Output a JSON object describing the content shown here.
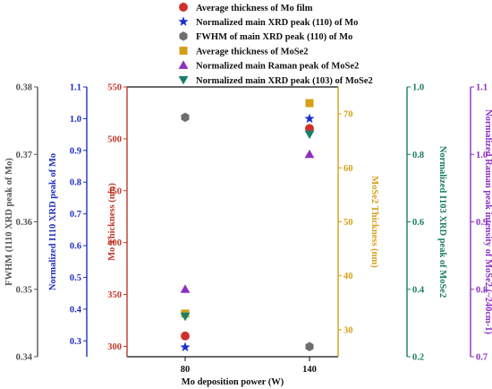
{
  "chart_data": {
    "type": "scatter",
    "x_categories": [
      "80",
      "140"
    ],
    "xlabel": "Mo deposition power (W)",
    "axes": [
      {
        "id": "mo_thickness",
        "label": "Mo Thickness (nm)",
        "color": "#c0392b",
        "range": [
          290,
          550
        ],
        "ticks": [
          "300",
          "350",
          "400",
          "450",
          "500",
          "550"
        ]
      },
      {
        "id": "fwhm",
        "label": "FWHM (I110 XRD peak of Mo)",
        "color": "#555555",
        "range": [
          0.34,
          0.38
        ],
        "ticks": [
          "0.34",
          "0.35",
          "0.36",
          "0.37",
          "0.38"
        ]
      },
      {
        "id": "norm_xrd_mo",
        "label": "Normalized I110 XRD peak of Mo",
        "color": "#1f2fbf",
        "range": [
          0.25,
          1.1
        ],
        "ticks": [
          "0.3",
          "0.4",
          "0.5",
          "0.6",
          "0.7",
          "0.8",
          "0.9",
          "1.0",
          "1.1"
        ]
      },
      {
        "id": "mose2_thickness",
        "label": "MoSe2 Thickness (nm)",
        "color": "#d4a017",
        "range": [
          25,
          75
        ],
        "ticks": [
          "30",
          "40",
          "50",
          "60",
          "70"
        ]
      },
      {
        "id": "norm_xrd_mose2",
        "label": "Normalized I103 XRD peak of MoSe2",
        "color": "#1a7f5a",
        "range": [
          0.2,
          1.0
        ],
        "ticks": [
          "0.2",
          "0.4",
          "0.6",
          "0.8",
          "1.0"
        ]
      },
      {
        "id": "norm_raman",
        "label": "Normalized Raman peak intensity of MoSe2 (~240cm-1)",
        "color": "#8e2fc0",
        "range": [
          0.7,
          1.1
        ],
        "ticks": [
          "0.7",
          "0.8",
          "0.9",
          "1.0",
          "1.1"
        ]
      }
    ],
    "series": [
      {
        "name": "Average thickness of Mo film",
        "axis": "mo_thickness",
        "marker": "circle",
        "color": "#d0302a",
        "values": [
          310,
          510
        ]
      },
      {
        "name": "Normalized main XRD peak (110) of Mo",
        "axis": "norm_xrd_mo",
        "marker": "star",
        "color": "#1a2fd0",
        "values": [
          0.28,
          1.0
        ]
      },
      {
        "name": "FWHM of main XRD peak (110) of Mo",
        "axis": "fwhm",
        "marker": "hexagon",
        "color": "#6e6e6e",
        "values": [
          0.3755,
          0.3415
        ]
      },
      {
        "name": "Average thickness of MoSe2",
        "axis": "mose2_thickness",
        "marker": "square",
        "color": "#d4a017",
        "values": [
          33,
          72
        ]
      },
      {
        "name": "Normalized main Raman peak of MoSe2",
        "axis": "norm_raman",
        "marker": "triangle-up",
        "color": "#8e2fc0",
        "values": [
          0.8,
          1.0
        ]
      },
      {
        "name": "Normalized main XRD peak (103) of MoSe2",
        "axis": "norm_xrd_mose2",
        "marker": "triangle-down",
        "color": "#1a7f6a",
        "values": [
          0.32,
          0.86
        ]
      }
    ]
  }
}
